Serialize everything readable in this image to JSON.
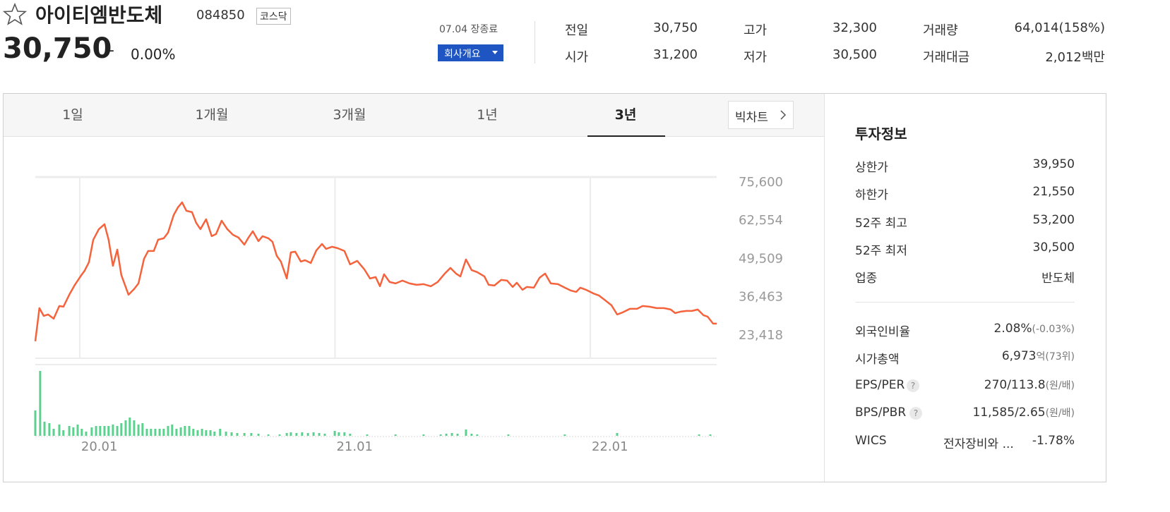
{
  "header": {
    "name": "아이티엠반도체",
    "code": "084850",
    "market": "코스닥",
    "price": "30,750",
    "change_sign": "–",
    "change_rate": "0.00%",
    "status": "07.04 장종료",
    "company_button": "회사개요"
  },
  "stats": [
    {
      "label": "전일",
      "value": "30,750"
    },
    {
      "label": "고가",
      "value": "32,300"
    },
    {
      "label": "거래량",
      "value": "64,014(158%)"
    },
    {
      "label": "시가",
      "value": "31,200"
    },
    {
      "label": "저가",
      "value": "30,500"
    },
    {
      "label": "거래대금",
      "value": "2,012백만"
    }
  ],
  "tabs": [
    "1일",
    "1개월",
    "3개월",
    "1년",
    "3년"
  ],
  "big_chart_button": "빅차트",
  "invest_info": {
    "title": "투자정보",
    "rows": [
      {
        "label": "상한가",
        "value": "39,950"
      },
      {
        "label": "하한가",
        "value": "21,550"
      },
      {
        "label": "52주 최고",
        "value": "53,200"
      },
      {
        "label": "52주 최저",
        "value": "30,500"
      },
      {
        "label": "업종",
        "value": "반도체"
      }
    ],
    "rows2": [
      {
        "label": "외국인비율",
        "value": "2.08%",
        "note": "(-0.03%)"
      },
      {
        "label": "시가총액",
        "value": "6,973",
        "note": "억(73위)"
      },
      {
        "label": "EPS/PER",
        "help": "?",
        "value": "270/113.8",
        "note": "(원/배)"
      },
      {
        "label": "BPS/PBR",
        "help": "?",
        "value": "11,585/2.65",
        "note": "(원/배)"
      },
      {
        "label": "WICS",
        "value": "전자장비와 ...",
        "note": "-1.78%"
      }
    ]
  },
  "chart_data": [
    {
      "type": "line",
      "color": "#f5633c",
      "grid": true,
      "xlim": [
        2019.826,
        2022.495
      ],
      "ylim": [
        15700,
        77500
      ],
      "xticks": [
        {
          "value": 2020,
          "label": "20.01"
        },
        {
          "value": 2021,
          "label": "21.01"
        },
        {
          "value": 2022,
          "label": "22.01"
        }
      ],
      "yticks": [
        {
          "value": 75600,
          "label": "75,600"
        },
        {
          "value": 62554,
          "label": "62,554"
        },
        {
          "value": 49509,
          "label": "49,509"
        },
        {
          "value": 36463,
          "label": "36,463"
        },
        {
          "value": 23418,
          "label": "23,418"
        }
      ],
      "x": [
        2019.826,
        2019.842,
        2019.859,
        2019.876,
        2019.898,
        2019.92,
        2019.936,
        2019.959,
        2019.981,
        2020.003,
        2020.019,
        2020.036,
        2020.053,
        2020.075,
        2020.097,
        2020.113,
        2020.13,
        2020.147,
        2020.163,
        2020.191,
        2020.213,
        2020.23,
        2020.252,
        2020.268,
        2020.29,
        2020.307,
        2020.329,
        2020.346,
        2020.368,
        2020.385,
        2020.401,
        2020.418,
        2020.44,
        2020.456,
        2020.473,
        2020.495,
        2020.517,
        2020.534,
        2020.556,
        2020.578,
        2020.6,
        2020.622,
        2020.645,
        2020.661,
        2020.678,
        2020.7,
        2020.716,
        2020.739,
        2020.755,
        2020.772,
        2020.788,
        2020.811,
        2020.827,
        2020.844,
        2020.866,
        2020.882,
        2020.905,
        2020.927,
        2020.949,
        2020.965,
        2020.988,
        2021.01,
        2021.037,
        2021.059,
        2021.087,
        2021.115,
        2021.137,
        2021.159,
        2021.176,
        2021.192,
        2021.214,
        2021.237,
        2021.264,
        2021.292,
        2021.32,
        2021.347,
        2021.375,
        2021.402,
        2021.43,
        2021.452,
        2021.474,
        2021.491,
        2021.513,
        2021.535,
        2021.557,
        2021.585,
        2021.602,
        2021.624,
        2021.651,
        2021.674,
        2021.696,
        2021.712,
        2021.734,
        2021.751,
        2021.779,
        2021.801,
        2021.823,
        2021.845,
        2021.873,
        2021.9,
        2021.923,
        2021.945,
        2021.961,
        2021.983,
        2022.011,
        2022.033,
        2022.055,
        2022.083,
        2022.105,
        2022.127,
        2022.155,
        2022.183,
        2022.205,
        2022.232,
        2022.26,
        2022.288,
        2022.315,
        2022.332,
        2022.354,
        2022.376,
        2022.398,
        2022.421,
        2022.443,
        2022.459,
        2022.481,
        2022.495
      ],
      "values": [
        21500,
        32800,
        30150,
        30630,
        29190,
        33520,
        33280,
        37370,
        40730,
        43620,
        45540,
        48430,
        56120,
        59730,
        61410,
        56120,
        47230,
        52760,
        44100,
        37370,
        39290,
        41210,
        49630,
        52280,
        52280,
        56120,
        56600,
        58530,
        64540,
        67180,
        68870,
        65980,
        65500,
        61890,
        59730,
        63100,
        57330,
        58050,
        62620,
        59730,
        57810,
        56840,
        54440,
        56840,
        59010,
        55640,
        57330,
        56600,
        55400,
        50590,
        48670,
        42900,
        51790,
        52040,
        48670,
        49150,
        48190,
        52520,
        54680,
        53000,
        53720,
        53240,
        52280,
        47710,
        48910,
        46020,
        42900,
        43380,
        40250,
        44340,
        41700,
        41210,
        42180,
        41210,
        40730,
        40970,
        40250,
        41700,
        44580,
        46500,
        44580,
        43620,
        49390,
        45780,
        45060,
        43620,
        40730,
        40490,
        42420,
        42180,
        40010,
        41460,
        39050,
        40010,
        39770,
        43140,
        44580,
        41210,
        40970,
        39770,
        38810,
        38330,
        39770,
        39050,
        37850,
        37130,
        35680,
        33760,
        30630,
        31360,
        32560,
        32560,
        33520,
        33280,
        32800,
        32800,
        32320,
        31120,
        31600,
        31840,
        31840,
        32320,
        30390,
        29910,
        27510,
        27510
      ]
    },
    {
      "type": "bar",
      "color": "#5cd08e",
      "xlim": [
        2019.826,
        2022.495
      ],
      "ylim": [
        0,
        100
      ],
      "x": [
        2019.826,
        2019.845,
        2019.862,
        2019.881,
        2019.898,
        2019.92,
        2019.936,
        2019.959,
        2019.975,
        2019.992,
        2020.008,
        2020.025,
        2020.047,
        2020.064,
        2020.08,
        2020.097,
        2020.113,
        2020.13,
        2020.147,
        2020.163,
        2020.18,
        2020.196,
        2020.213,
        2020.23,
        2020.246,
        2020.263,
        2020.279,
        2020.296,
        2020.313,
        2020.329,
        2020.346,
        2020.362,
        2020.379,
        2020.396,
        2020.412,
        2020.429,
        2020.445,
        2020.462,
        2020.479,
        2020.495,
        2020.512,
        2020.528,
        2020.55,
        2020.573,
        2020.595,
        2020.617,
        2020.645,
        2020.672,
        2020.7,
        2020.739,
        2020.783,
        2020.811,
        2020.827,
        2020.849,
        2020.871,
        2020.894,
        2020.916,
        2020.938,
        2020.96,
        2020.999,
        2021.015,
        2021.037,
        2021.059,
        2021.126,
        2021.237,
        2021.347,
        2021.414,
        2021.436,
        2021.458,
        2021.48,
        2021.513,
        2021.535,
        2021.557,
        2021.679,
        2021.9,
        2022.105,
        2022.426,
        2022.47
      ],
      "values": [
        36,
        92,
        20,
        18,
        10,
        16,
        8,
        14,
        12,
        16,
        10,
        6,
        12,
        14,
        14,
        14,
        14,
        16,
        14,
        18,
        22,
        26,
        22,
        16,
        18,
        10,
        10,
        10,
        10,
        10,
        14,
        16,
        10,
        12,
        14,
        14,
        10,
        8,
        10,
        8,
        8,
        6,
        10,
        6,
        5,
        4,
        4,
        4,
        3,
        2,
        2,
        4,
        5,
        4,
        5,
        4,
        5,
        4,
        3,
        7,
        5,
        5,
        3,
        2,
        2,
        2,
        2,
        3,
        4,
        3,
        9,
        3,
        2,
        2,
        2,
        4,
        2,
        2
      ]
    }
  ]
}
